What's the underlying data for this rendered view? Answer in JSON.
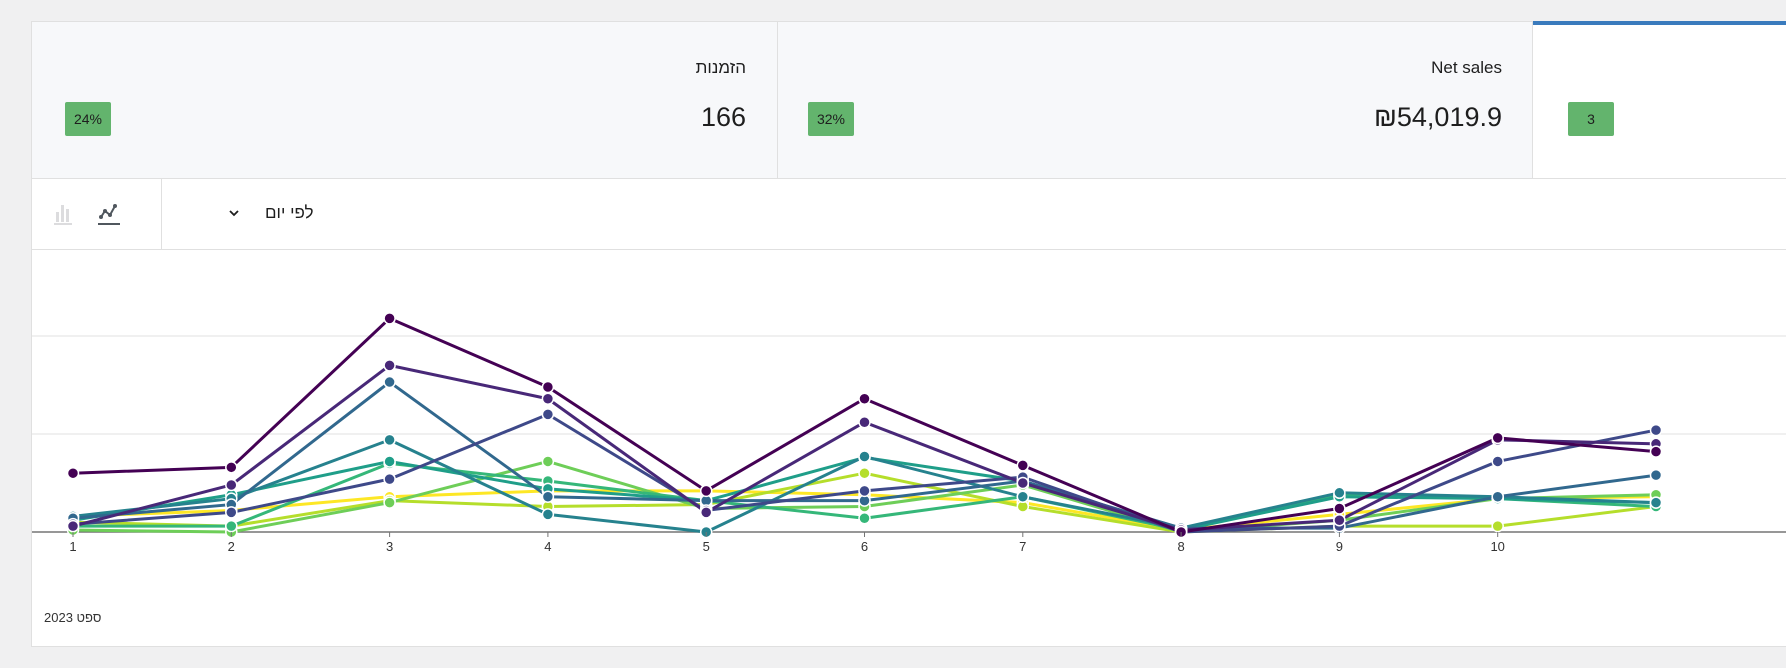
{
  "tiles": [
    {
      "label": "הזמנות",
      "value": "166",
      "delta": "24%"
    },
    {
      "label": "Net sales",
      "value": "₪54,019.9",
      "delta": "32%"
    },
    {
      "label": "",
      "value": "",
      "delta": "3"
    }
  ],
  "toolbar": {
    "interval_label": "לפי יום",
    "chevron_icon": "chevron-down-icon",
    "line_chart_icon": "line-chart-icon",
    "bar_chart_icon": "bar-chart-icon"
  },
  "chart": {
    "date_label": "ספט 2023"
  },
  "chart_data": {
    "type": "line",
    "x": [
      1,
      2,
      3,
      4,
      5,
      6,
      7,
      8,
      9,
      10,
      11
    ],
    "x_tick_labels": [
      "1",
      "2",
      "3",
      "4",
      "5",
      "6",
      "7",
      "8",
      "9",
      "10"
    ],
    "ylim": [
      0,
      300
    ],
    "y_gridlines": [
      0,
      100,
      200,
      300
    ],
    "grid": true,
    "series": [
      {
        "color": "#440154",
        "values": [
          60,
          66,
          218,
          148,
          42,
          136,
          68,
          0,
          24,
          96,
          82
        ]
      },
      {
        "color": "#482878",
        "values": [
          6,
          48,
          170,
          136,
          20,
          112,
          50,
          2,
          12,
          94,
          90
        ]
      },
      {
        "color": "#3e4989",
        "values": [
          8,
          20,
          54,
          120,
          22,
          42,
          56,
          0,
          6,
          72,
          104
        ]
      },
      {
        "color": "#31688e",
        "values": [
          14,
          28,
          153,
          36,
          32,
          32,
          52,
          4,
          4,
          36,
          58
        ]
      },
      {
        "color": "#26828e",
        "values": [
          16,
          34,
          94,
          18,
          0,
          77,
          36,
          4,
          40,
          36,
          30
        ]
      },
      {
        "color": "#1f9e89",
        "values": [
          12,
          38,
          72,
          44,
          32,
          76,
          52,
          2,
          36,
          34,
          30
        ]
      },
      {
        "color": "#35b779",
        "values": [
          6,
          6,
          70,
          52,
          32,
          14,
          36,
          2,
          38,
          34,
          26
        ]
      },
      {
        "color": "#6ece58",
        "values": [
          2,
          0,
          30,
          72,
          24,
          26,
          48,
          0,
          12,
          34,
          38
        ]
      },
      {
        "color": "#b5de2b",
        "values": [
          10,
          6,
          32,
          26,
          28,
          60,
          26,
          0,
          6,
          6,
          26
        ]
      },
      {
        "color": "#fde725",
        "values": [
          16,
          22,
          36,
          42,
          42,
          38,
          30,
          2,
          18,
          34,
          36
        ]
      }
    ]
  }
}
